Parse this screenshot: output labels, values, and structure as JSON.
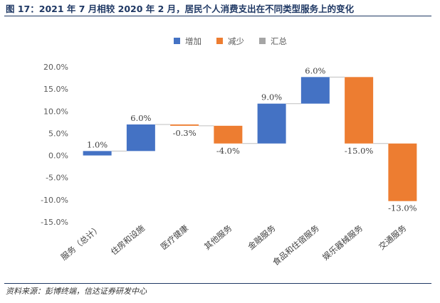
{
  "figure": {
    "title": "图 17：2021 年 7 月相较 2020 年 2 月，居民个人消费支出在不同类型服务上的变化",
    "source": "资料来源：彭博终端，信达证券研发中心"
  },
  "chart_data": {
    "type": "waterfall",
    "categories": [
      "服务（总计）",
      "住房和设施",
      "医疗健康",
      "其他服务",
      "金融服务",
      "食品和住宿服务",
      "娱乐器械服务",
      "交通服务"
    ],
    "values": [
      1.0,
      6.0,
      -0.3,
      -4.0,
      9.0,
      6.0,
      -15.0,
      -13.0
    ],
    "value_labels": [
      "1.0%",
      "6.0%",
      "-0.3%",
      "-4.0%",
      "9.0%",
      "6.0%",
      "-15.0%",
      "-13.0%"
    ],
    "legend": [
      {
        "name": "增加",
        "color": "#4472c4"
      },
      {
        "name": "减少",
        "color": "#ed7d31"
      },
      {
        "name": "汇总",
        "color": "#a5a5a5"
      }
    ],
    "ylim": [
      -15,
      20
    ],
    "yticks": [
      20,
      15,
      10,
      5,
      0,
      -5,
      -10,
      -15
    ],
    "ytick_labels": [
      "20.0%",
      "15.0%",
      "10.0%",
      "5.0%",
      "0.0%",
      "-5.0%",
      "-10.0%",
      "-15.0%"
    ],
    "grid": false,
    "legend_position": "top"
  }
}
